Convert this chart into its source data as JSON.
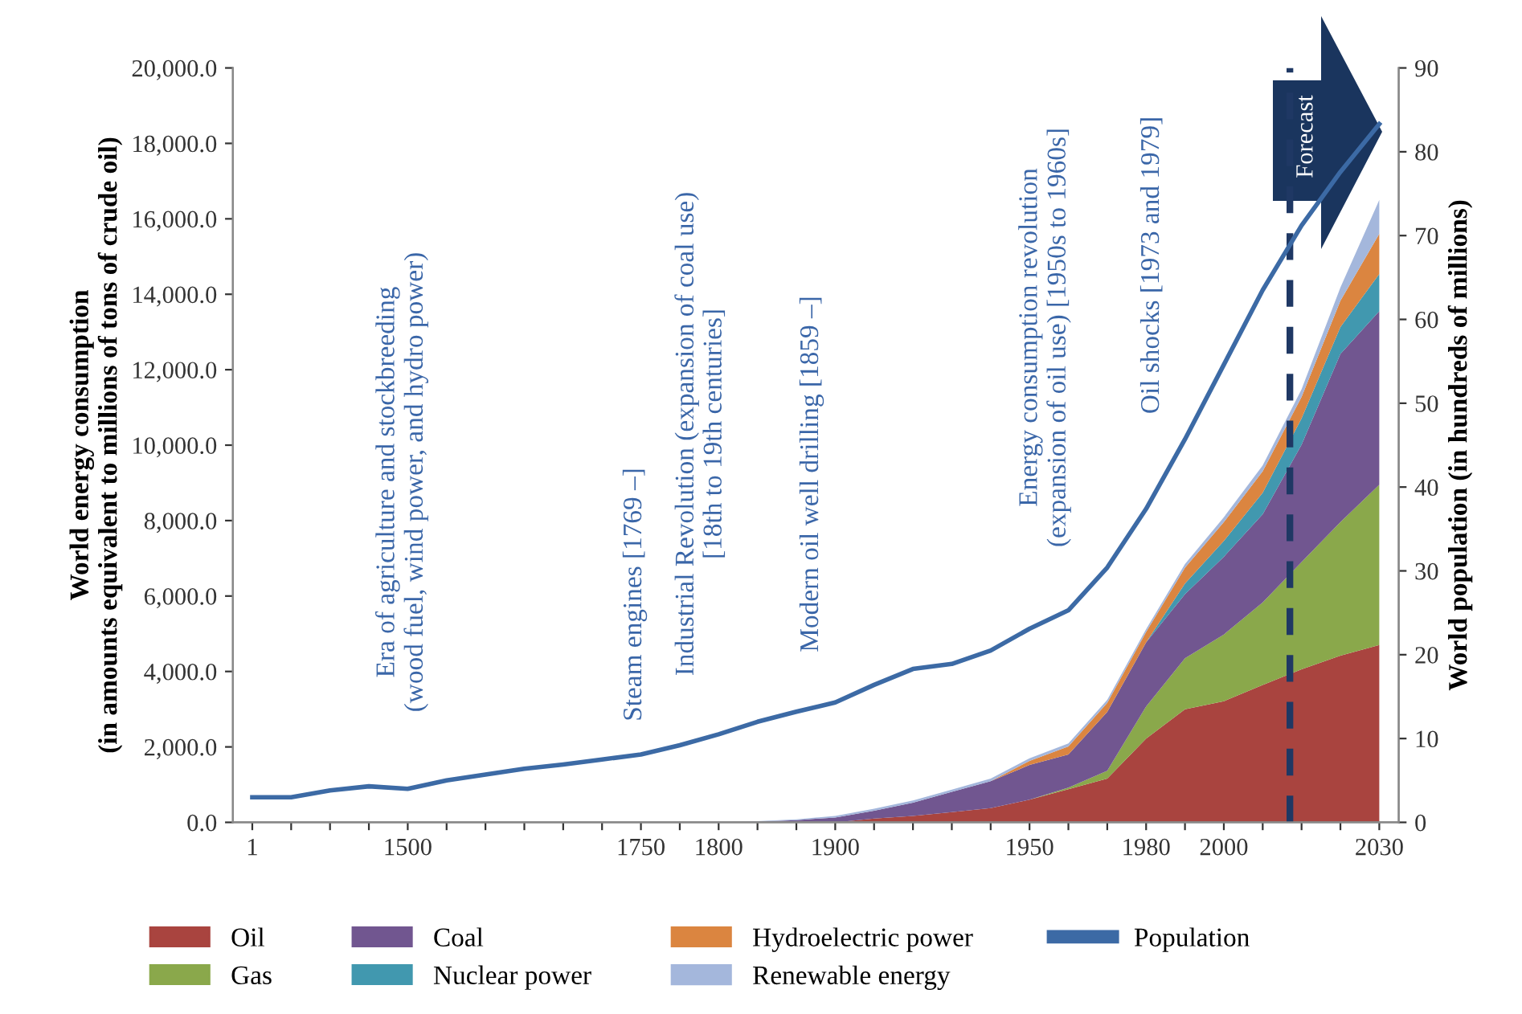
{
  "chart_data": {
    "type": "area",
    "stacked": true,
    "categories": [
      "1",
      null,
      null,
      null,
      "1500",
      null,
      null,
      null,
      null,
      null,
      "1750",
      null,
      "1800",
      null,
      null,
      "1900",
      null,
      null,
      null,
      null,
      "1950",
      null,
      null,
      "1980",
      null,
      "2000",
      null,
      null,
      null,
      "2030"
    ],
    "series": [
      {
        "name": "Oil",
        "color": "#a9443f",
        "values": [
          0,
          0,
          0,
          0,
          0,
          0,
          0,
          0,
          0,
          0,
          0,
          0,
          0,
          0,
          0,
          0,
          100,
          170,
          270,
          380,
          600,
          880,
          1160,
          2220,
          3000,
          3210,
          3640,
          4060,
          4420,
          4700
        ]
      },
      {
        "name": "Gas",
        "color": "#8aa84b",
        "values": [
          0,
          0,
          0,
          0,
          0,
          0,
          0,
          0,
          0,
          0,
          0,
          0,
          0,
          0,
          0,
          0,
          0,
          0,
          0,
          0,
          0,
          40,
          210,
          850,
          1350,
          1770,
          2190,
          2840,
          3540,
          4250
        ]
      },
      {
        "name": "Coal",
        "color": "#715690",
        "values": [
          0,
          0,
          0,
          0,
          0,
          0,
          0,
          0,
          0,
          0,
          0,
          0,
          0,
          20,
          60,
          130,
          210,
          350,
          540,
          710,
          920,
          880,
          1560,
          1700,
          1700,
          2060,
          2340,
          3110,
          4460,
          4600
        ]
      },
      {
        "name": "Nuclear power",
        "color": "#4198af",
        "values": [
          0,
          0,
          0,
          0,
          0,
          0,
          0,
          0,
          0,
          0,
          0,
          0,
          0,
          0,
          0,
          0,
          0,
          0,
          0,
          0,
          0,
          0,
          0,
          0,
          280,
          420,
          570,
          700,
          710,
          990
        ]
      },
      {
        "name": "Hydroelectric power",
        "color": "#db8540",
        "values": [
          0,
          0,
          0,
          0,
          0,
          0,
          0,
          0,
          0,
          0,
          0,
          0,
          0,
          0,
          0,
          0,
          0,
          0,
          0,
          0,
          110,
          210,
          240,
          280,
          420,
          500,
          570,
          570,
          700,
          1060
        ]
      },
      {
        "name": "Renewable energy",
        "color": "#a4b7dc",
        "values": [
          0,
          0,
          0,
          0,
          0,
          0,
          0,
          0,
          0,
          0,
          0,
          0,
          0,
          10,
          20,
          40,
          50,
          60,
          60,
          70,
          70,
          80,
          80,
          70,
          100,
          130,
          150,
          200,
          350,
          900
        ]
      },
      {
        "name": "Population",
        "type": "line",
        "axis": "y2",
        "color": "#3c6aa5",
        "values": [
          3.0,
          3.0,
          3.8,
          4.3,
          4.0,
          5.0,
          5.7,
          6.4,
          6.9,
          7.5,
          8.1,
          9.2,
          10.5,
          12.0,
          13.2,
          14.3,
          16.4,
          18.3,
          18.9,
          20.5,
          23.1,
          25.3,
          30.4,
          37.4,
          45.7,
          54.6,
          63.5,
          71.2,
          77.6,
          83.3
        ]
      }
    ],
    "ylim": [
      0,
      20000
    ],
    "yticks": [
      {
        "value": 0,
        "label": "0.0"
      },
      {
        "value": 2000,
        "label": "2,000.0"
      },
      {
        "value": 4000,
        "label": "4,000.0"
      },
      {
        "value": 6000,
        "label": "6,000.0"
      },
      {
        "value": 8000,
        "label": "8,000.0"
      },
      {
        "value": 10000,
        "label": "10,000.0"
      },
      {
        "value": 12000,
        "label": "12,000.0"
      },
      {
        "value": 14000,
        "label": "14,000.0"
      },
      {
        "value": 16000,
        "label": "16,000.0"
      },
      {
        "value": 18000,
        "label": "18,000.0"
      },
      {
        "value": 20000,
        "label": "20,000.0"
      }
    ],
    "y2lim": [
      0,
      90
    ],
    "y2ticks": [
      0,
      10,
      20,
      30,
      40,
      50,
      60,
      70,
      80,
      90
    ],
    "ylabel": "World energy consumption\n(in amounts equivalent to millions of tons of crude oil)",
    "y2label": "World population (in hundreds of millions)",
    "annotations": [
      "Era of agriculture and stockbreeding\n(wood fuel, wind power, and hydro power)",
      "Steam engines [1769 –]",
      "Industrial Revolution (expansion of coal use)\n[18th to 19th centuries]",
      "Modern oil well drilling [1859 –]",
      "Energy consumption revolution\n(expansion of oil use) [1950s to 1960s]",
      "Oil shocks [1973 and 1979]",
      "Forecast"
    ],
    "legend": "bottom",
    "grid": false
  }
}
